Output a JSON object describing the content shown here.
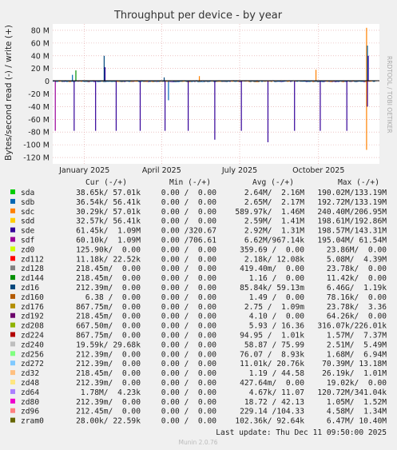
{
  "chart_data": {
    "type": "line",
    "title": "Throughput per device - by year",
    "ylabel": "Bytes/second read (-) / write (+)",
    "ylim": [
      -130000000,
      90000000
    ],
    "y_ticks": [
      {
        "value": 80000000,
        "label": "80 M"
      },
      {
        "value": 60000000,
        "label": "60 M"
      },
      {
        "value": 40000000,
        "label": "40 M"
      },
      {
        "value": 20000000,
        "label": "20 M"
      },
      {
        "value": 0,
        "label": "0"
      },
      {
        "value": -20000000,
        "label": "-20 M"
      },
      {
        "value": -40000000,
        "label": "-40 M"
      },
      {
        "value": -60000000,
        "label": "-60 M"
      },
      {
        "value": -80000000,
        "label": "-80 M"
      },
      {
        "value": -100000000,
        "label": "-100 M"
      },
      {
        "value": -120000000,
        "label": "-120 M"
      }
    ],
    "x_range": [
      "2024-11-25",
      "2025-12-11"
    ],
    "x_ticks": [
      {
        "date": "2025-01-01",
        "label": "January 2025"
      },
      {
        "date": "2025-04-01",
        "label": "April 2025"
      },
      {
        "date": "2025-07-01",
        "label": "July 2025"
      },
      {
        "date": "2025-10-01",
        "label": "October 2025"
      }
    ],
    "grid": true,
    "legend_placement": "bottom",
    "legend_header": {
      "cur": "Cur (-/+)",
      "min": "Min (-/+)",
      "avg": "Avg (-/+)",
      "max": "Max (-/+)"
    },
    "series": [
      {
        "name": "sda",
        "color": "#00cc00",
        "cur": "38.65k/ 57.01k",
        "min": "0.00 /  0.00",
        "avg": "2.64M/  2.16M",
        "max": "190.02M/133.19M"
      },
      {
        "name": "sdb",
        "color": "#0066b3",
        "cur": "36.54k/ 56.41k",
        "min": "0.00 /  0.00",
        "avg": "2.65M/  2.17M",
        "max": "192.72M/133.19M"
      },
      {
        "name": "sdc",
        "color": "#ff8000",
        "cur": "30.29k/ 57.01k",
        "min": "0.00 /  0.00",
        "avg": "589.97k/  1.46M",
        "max": "240.40M/206.95M"
      },
      {
        "name": "sdd",
        "color": "#ffcc00",
        "cur": "32.57k/ 56.41k",
        "min": "0.00 /  0.00",
        "avg": "2.59M/  1.41M",
        "max": "198.61M/192.86M"
      },
      {
        "name": "sde",
        "color": "#330099",
        "cur": "61.45k/  1.09M",
        "min": "0.00 /320.67",
        "avg": "2.92M/  1.31M",
        "max": "198.57M/143.31M"
      },
      {
        "name": "sdf",
        "color": "#990099",
        "cur": "60.10k/  1.09M",
        "min": "0.00 /706.61",
        "avg": "6.62M/967.14k",
        "max": "195.04M/ 61.54M"
      },
      {
        "name": "zd0",
        "color": "#ccff00",
        "cur": "125.90k/  0.00",
        "min": "0.00 /  0.00",
        "avg": "359.69 /  0.00",
        "max": "23.86M/  0.00"
      },
      {
        "name": "zd112",
        "color": "#ff0000",
        "cur": "11.18k/ 22.52k",
        "min": "0.00 /  0.00",
        "avg": "2.18k/ 12.08k",
        "max": "5.08M/  4.39M"
      },
      {
        "name": "zd128",
        "color": "#808080",
        "cur": "218.45m/  0.00",
        "min": "0.00 /  0.00",
        "avg": "419.40m/  0.00",
        "max": "23.78k/  0.00"
      },
      {
        "name": "zd144",
        "color": "#008f00",
        "cur": "218.45m/  0.00",
        "min": "0.00 /  0.00",
        "avg": "1.16 /  0.00",
        "max": "11.42k/  0.00"
      },
      {
        "name": "zd16",
        "color": "#00487d",
        "cur": "212.39m/  0.00",
        "min": "0.00 /  0.00",
        "avg": "85.84k/ 59.13m",
        "max": "6.46G/  1.19k"
      },
      {
        "name": "zd160",
        "color": "#b35a00",
        "cur": "6.38 /  0.00",
        "min": "0.00 /  0.00",
        "avg": "1.49 /  0.00",
        "max": "78.16k/  0.00"
      },
      {
        "name": "zd176",
        "color": "#b38f00",
        "cur": "867.75m/  0.00",
        "min": "0.00 /  0.00",
        "avg": "2.75 /  1.09m",
        "max": "23.78k/  3.36"
      },
      {
        "name": "zd192",
        "color": "#6b006b",
        "cur": "218.45m/  0.00",
        "min": "0.00 /  0.00",
        "avg": "4.10 /  0.00",
        "max": "64.26k/  0.00"
      },
      {
        "name": "zd208",
        "color": "#8fb300",
        "cur": "667.50m/  0.00",
        "min": "0.00 /  0.00",
        "avg": "5.93 / 16.36",
        "max": "316.07k/226.01k"
      },
      {
        "name": "zd224",
        "color": "#b30000",
        "cur": "867.75m/  0.00",
        "min": "0.00 /  0.00",
        "avg": "94.95 /  1.01k",
        "max": "1.57M/  7.37M"
      },
      {
        "name": "zd240",
        "color": "#bebebe",
        "cur": "19.59k/ 29.68k",
        "min": "0.00 /  0.00",
        "avg": "58.87 / 75.99",
        "max": "2.51M/  5.49M"
      },
      {
        "name": "zd256",
        "color": "#80ff80",
        "cur": "212.39m/  0.00",
        "min": "0.00 /  0.00",
        "avg": "76.07 /  8.93k",
        "max": "1.68M/  6.94M"
      },
      {
        "name": "zd272",
        "color": "#80c9ff",
        "cur": "212.39m/  0.00",
        "min": "0.00 /  0.00",
        "avg": "11.01k/ 20.76k",
        "max": "70.39M/ 13.18M"
      },
      {
        "name": "zd32",
        "color": "#ffc080",
        "cur": "218.45m/  0.00",
        "min": "0.00 /  0.00",
        "avg": "1.19 / 44.58",
        "max": "26.19k/  1.01M"
      },
      {
        "name": "zd48",
        "color": "#ffe680",
        "cur": "212.39m/  0.00",
        "min": "0.00 /  0.00",
        "avg": "427.64m/  0.00",
        "max": "19.02k/  0.00"
      },
      {
        "name": "zd64",
        "color": "#aa80ff",
        "cur": "1.78M/  4.23k",
        "min": "0.00 /  0.00",
        "avg": "4.67k/ 11.07",
        "max": "120.72M/341.04k"
      },
      {
        "name": "zd80",
        "color": "#ee00cc",
        "cur": "212.39m/  0.00",
        "min": "0.00 /  0.00",
        "avg": "18.72 / 42.13",
        "max": "1.05M/  1.52M"
      },
      {
        "name": "zd96",
        "color": "#ff8080",
        "cur": "212.45m/  0.00",
        "min": "0.00 /  0.00",
        "avg": "229.14 /104.33",
        "max": "4.58M/  1.34M"
      },
      {
        "name": "zram0",
        "color": "#666600",
        "cur": "28.00k/ 22.59k",
        "min": "0.00 /  0.00",
        "avg": "102.36k/ 92.64k",
        "max": "6.47M/ 10.40M"
      }
    ],
    "read_spikes": [
      {
        "date": "2024-11-28",
        "value": -78000000,
        "color": "#990099"
      },
      {
        "date": "2024-12-20",
        "value": -78000000,
        "color": "#330099"
      },
      {
        "date": "2025-01-14",
        "value": -78000000,
        "color": "#330099"
      },
      {
        "date": "2025-02-07",
        "value": -78000000,
        "color": "#330099"
      },
      {
        "date": "2025-03-07",
        "value": -78000000,
        "color": "#330099"
      },
      {
        "date": "2025-04-05",
        "value": -78000000,
        "color": "#330099"
      },
      {
        "date": "2025-04-09",
        "value": -30000000,
        "color": "#0066b3"
      },
      {
        "date": "2025-05-02",
        "value": -78000000,
        "color": "#330099"
      },
      {
        "date": "2025-06-02",
        "value": -92000000,
        "color": "#330099"
      },
      {
        "date": "2025-07-03",
        "value": -78000000,
        "color": "#330099"
      },
      {
        "date": "2025-08-03",
        "value": -96000000,
        "color": "#330099"
      },
      {
        "date": "2025-09-03",
        "value": -78000000,
        "color": "#330099"
      },
      {
        "date": "2025-10-03",
        "value": -78000000,
        "color": "#330099"
      },
      {
        "date": "2025-11-03",
        "value": -78000000,
        "color": "#330099"
      },
      {
        "date": "2025-11-26",
        "value": -108000000,
        "color": "#ff8000"
      },
      {
        "date": "2025-11-27",
        "value": -40000000,
        "color": "#330099"
      }
    ],
    "write_spikes": [
      {
        "date": "2024-12-18",
        "value": 10000000,
        "color": "#0066b3"
      },
      {
        "date": "2024-12-22",
        "value": 17000000,
        "color": "#008f00"
      },
      {
        "date": "2025-01-24",
        "value": 40000000,
        "color": "#00487d"
      },
      {
        "date": "2025-01-25",
        "value": 22000000,
        "color": "#330099"
      },
      {
        "date": "2025-04-04",
        "value": 6000000,
        "color": "#00487d"
      },
      {
        "date": "2025-05-15",
        "value": 8000000,
        "color": "#ff8000"
      },
      {
        "date": "2025-09-28",
        "value": 18000000,
        "color": "#ff8000"
      },
      {
        "date": "2025-11-26",
        "value": 84000000,
        "color": "#ff8000"
      },
      {
        "date": "2025-11-27",
        "value": 56000000,
        "color": "#0066b3"
      },
      {
        "date": "2025-11-28",
        "value": 40000000,
        "color": "#330099"
      }
    ],
    "footer": {
      "last_update": "Last update: Thu Dec 11 09:50:00 2025",
      "tool": "Munin 2.0.76",
      "side_label": "RRDTOOL / TOBI OETIKER"
    }
  }
}
